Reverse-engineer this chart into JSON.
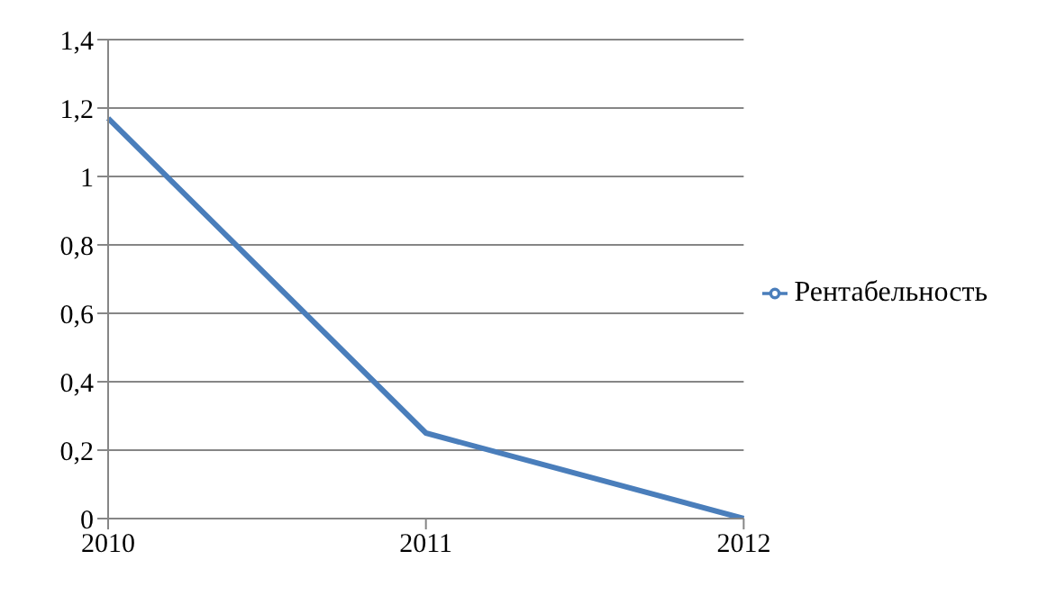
{
  "chart_data": {
    "type": "line",
    "categories": [
      "2010",
      "2011",
      "2012"
    ],
    "series": [
      {
        "name": "Рентабельность",
        "color": "#4a7ebb",
        "values": [
          1.17,
          0.25,
          0
        ]
      }
    ],
    "ylim": [
      0,
      1.4
    ],
    "yticks": [
      {
        "value": 0,
        "label": "0"
      },
      {
        "value": 0.2,
        "label": "0,2"
      },
      {
        "value": 0.4,
        "label": "0,4"
      },
      {
        "value": 0.6,
        "label": "0,6"
      },
      {
        "value": 0.8,
        "label": "0,8"
      },
      {
        "value": 1,
        "label": "1"
      },
      {
        "value": 1.2,
        "label": "1,2"
      },
      {
        "value": 1.4,
        "label": "1,4"
      }
    ],
    "grid": "y",
    "legend": "right",
    "marker": "none",
    "line_style": "solid"
  }
}
